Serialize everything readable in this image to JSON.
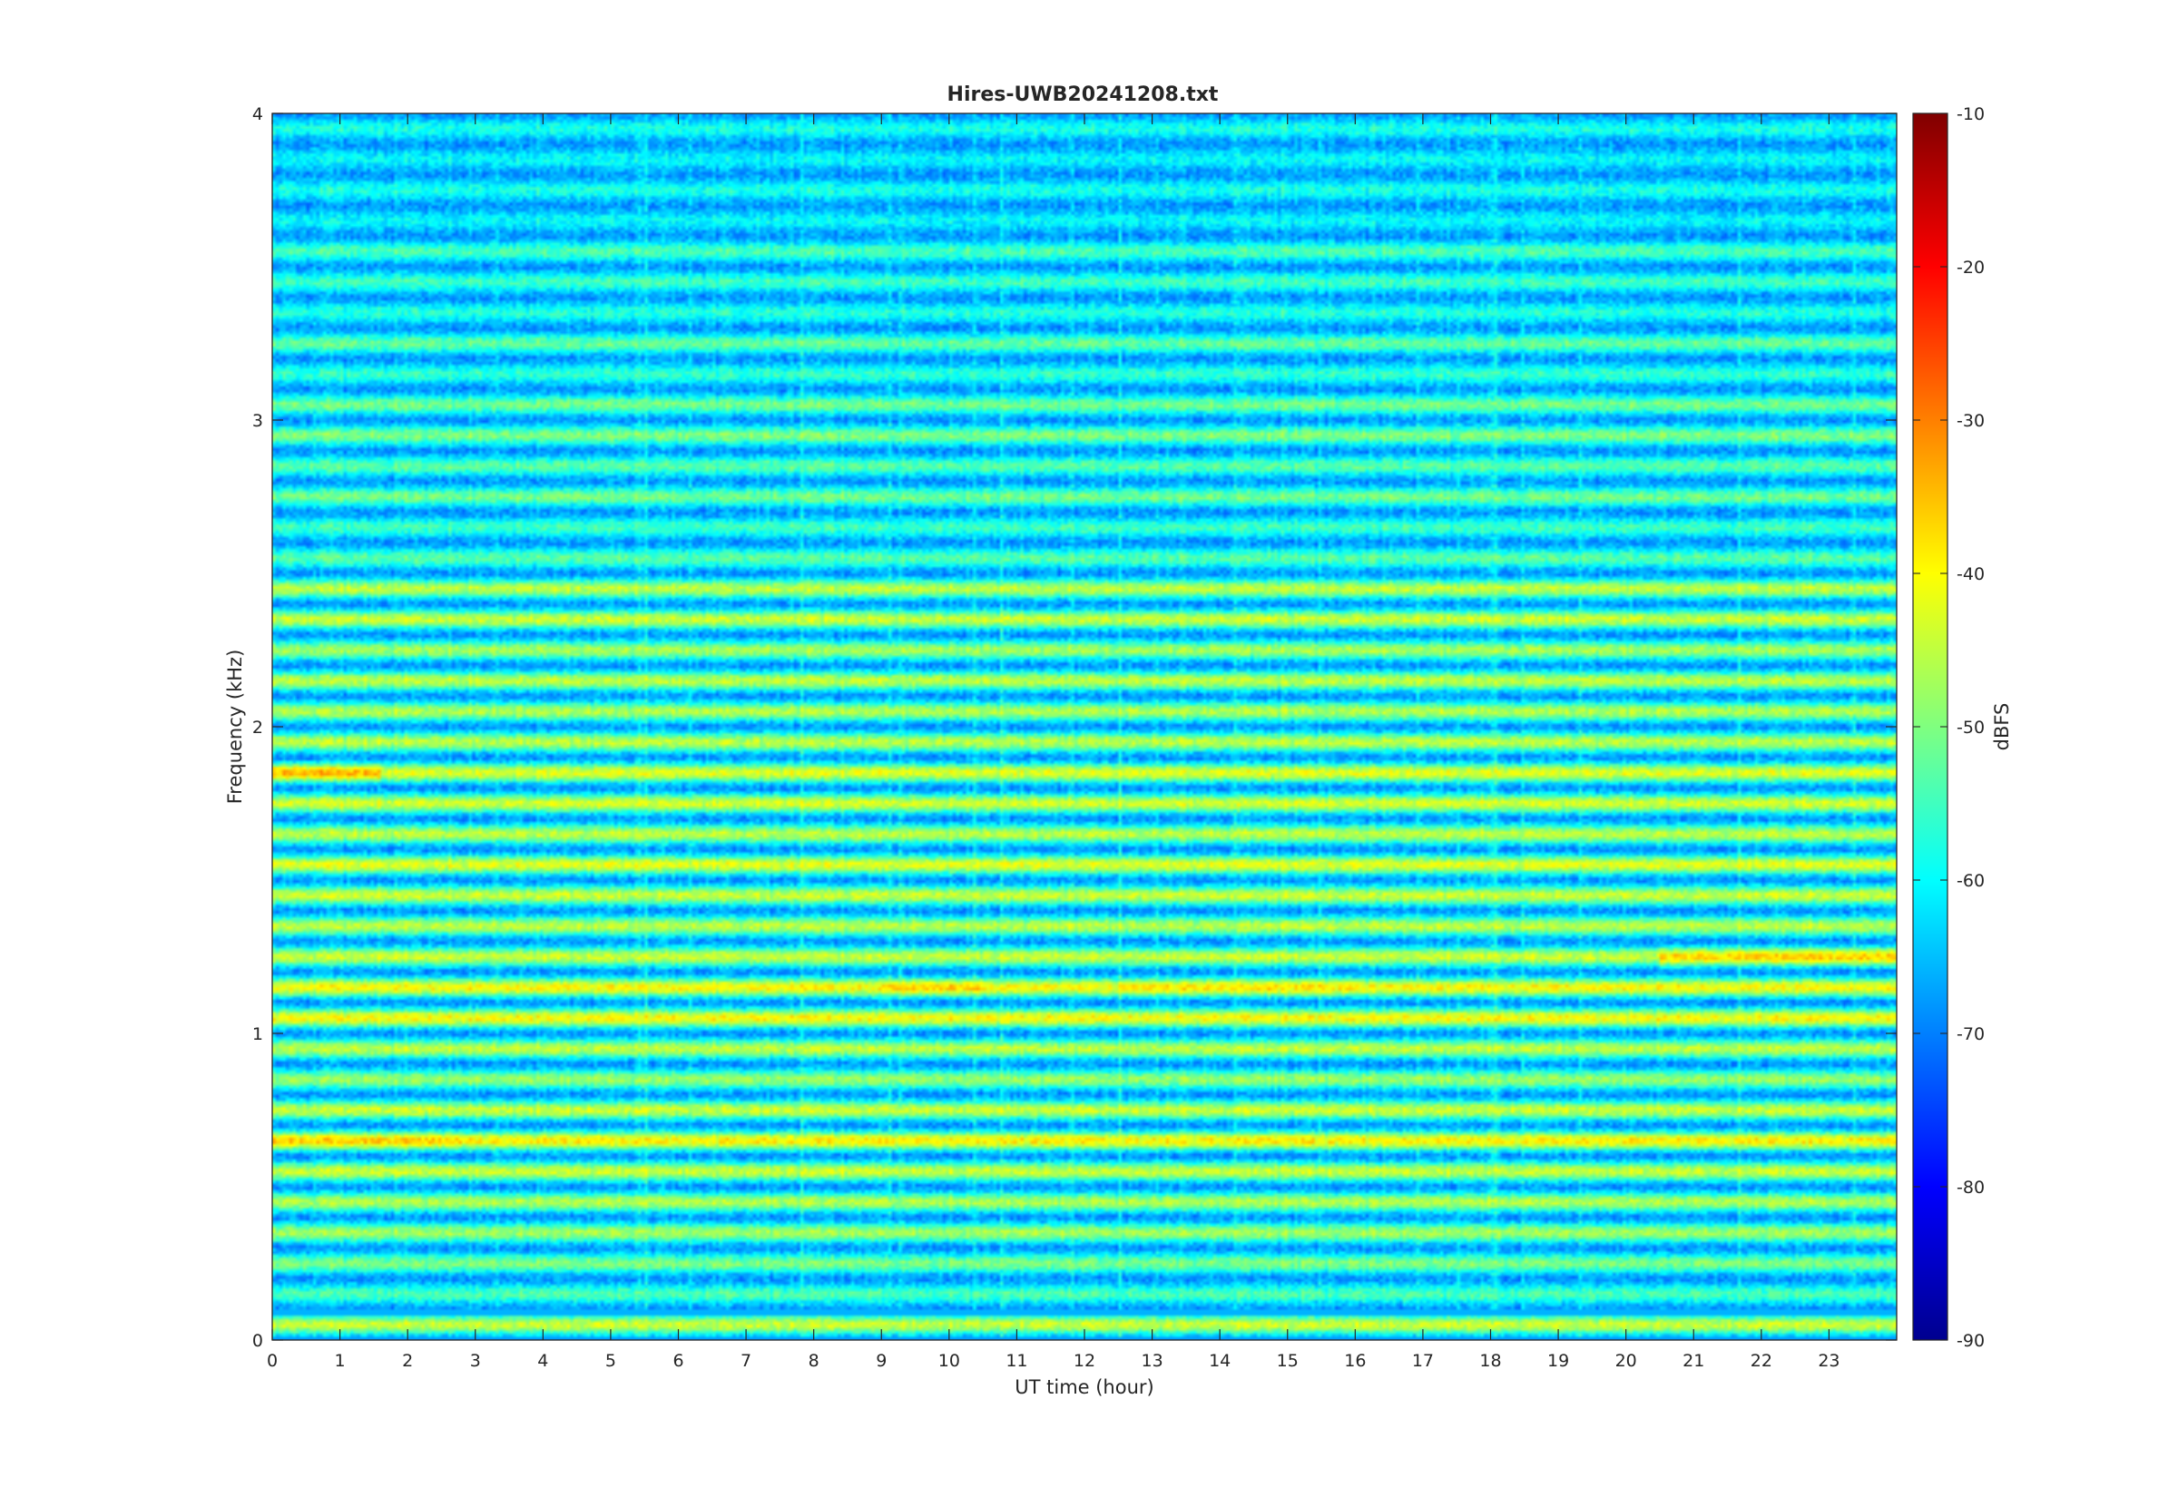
{
  "chart_data": {
    "type": "heatmap",
    "title": "Hires-UWB20241208.txt",
    "xlabel": "UT time (hour)",
    "ylabel": "Frequency (kHz)",
    "colorbar_label": "dBFS",
    "xlim": [
      0,
      24
    ],
    "ylim": [
      0,
      4
    ],
    "clim": [
      -90,
      -10
    ],
    "colormap": "jet",
    "x_ticks": [
      "0",
      "1",
      "2",
      "3",
      "4",
      "5",
      "6",
      "7",
      "8",
      "9",
      "10",
      "11",
      "12",
      "13",
      "14",
      "15",
      "16",
      "17",
      "18",
      "19",
      "20",
      "21",
      "22",
      "23"
    ],
    "y_ticks": [
      "0",
      "1",
      "2",
      "3",
      "4"
    ],
    "colorbar_ticks": [
      "-90",
      "-80",
      "-70",
      "-60",
      "-50",
      "-40",
      "-30",
      "-20",
      "-10"
    ],
    "frequency_bands_khz": [
      0.05,
      0.15,
      0.25,
      0.35,
      0.45,
      0.55,
      0.65,
      0.75,
      0.85,
      0.95,
      1.05,
      1.15,
      1.25,
      1.35,
      1.45,
      1.55,
      1.65,
      1.75,
      1.85,
      1.95,
      2.05,
      2.15,
      2.25,
      2.35,
      2.45,
      2.55,
      2.65,
      2.75,
      2.85,
      2.95,
      3.05,
      3.15,
      3.25,
      3.35,
      3.45,
      3.55,
      3.65,
      3.75,
      3.85,
      3.95
    ],
    "band_level_dbfs": [
      -44,
      -54,
      -50,
      -47,
      -46,
      -44,
      -39,
      -44,
      -48,
      -45,
      -40,
      -40,
      -44,
      -45,
      -44,
      -42,
      -45,
      -43,
      -42,
      -45,
      -46,
      -45,
      -47,
      -44,
      -45,
      -53,
      -55,
      -51,
      -53,
      -50,
      -51,
      -56,
      -52,
      -57,
      -55,
      -54,
      -60,
      -58,
      -60,
      -58
    ],
    "trough_level_dbfs": -68,
    "time_dependence": [
      {
        "hours": [
          0,
          2.8
        ],
        "band_khz": 0.65,
        "level_dbfs": -36
      },
      {
        "hours": [
          20.5,
          24
        ],
        "band_khz": 1.25,
        "level_dbfs": -36
      },
      {
        "hours": [
          9,
          10.5
        ],
        "band_khz": 1.15,
        "level_dbfs": -36
      },
      {
        "hours": [
          12.5,
          16
        ],
        "band_khz": 1.15,
        "level_dbfs": -38
      },
      {
        "hours": [
          0,
          1.6
        ],
        "band_khz": 1.85,
        "level_dbfs": -34
      }
    ]
  }
}
